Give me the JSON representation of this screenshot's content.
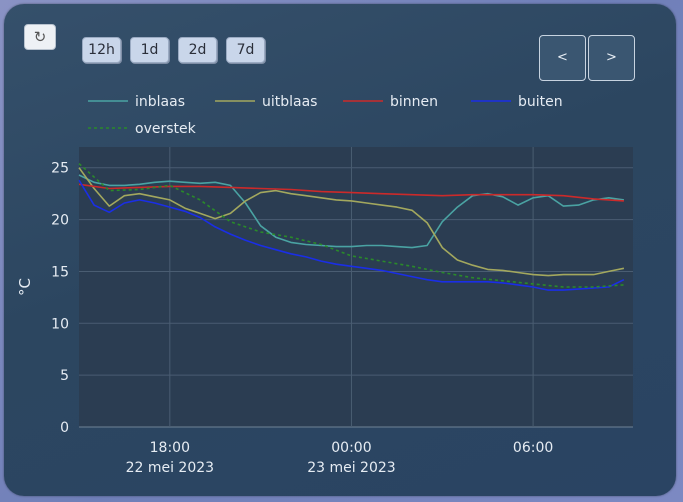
{
  "controls": {
    "refresh_icon": "↻",
    "ranges": [
      "12h",
      "1d",
      "2d",
      "7d"
    ],
    "prev": "<",
    "next": ">"
  },
  "chart_data": {
    "type": "line",
    "ylabel": "°C",
    "ylim": [
      0,
      27
    ],
    "yticks": [
      0,
      5,
      10,
      15,
      20,
      25
    ],
    "xlim": [
      15.0,
      33.3
    ],
    "xticks": [
      {
        "x": 18,
        "label": [
          "18:00",
          "22 mei 2023"
        ]
      },
      {
        "x": 24,
        "label": [
          "00:00",
          "23 mei 2023"
        ]
      },
      {
        "x": 30,
        "label": [
          "06:00",
          ""
        ]
      }
    ],
    "grid": true,
    "legend": "top-left",
    "series": [
      {
        "name": "inblaas",
        "color": "#4aa3a3",
        "dash": "",
        "x": [
          15.0,
          15.5,
          16.0,
          16.5,
          17.0,
          17.5,
          18.0,
          18.5,
          19.0,
          19.5,
          20.0,
          20.5,
          21.0,
          21.5,
          22.0,
          22.5,
          23.0,
          23.5,
          24.0,
          24.5,
          25.0,
          25.5,
          26.0,
          26.5,
          27.0,
          27.5,
          28.0,
          28.5,
          29.0,
          29.5,
          30.0,
          30.5,
          31.0,
          31.5,
          32.0,
          32.5,
          33.0
        ],
        "y": [
          24.3,
          23.6,
          23.3,
          23.3,
          23.4,
          23.6,
          23.7,
          23.6,
          23.5,
          23.6,
          23.3,
          21.6,
          19.4,
          18.3,
          17.8,
          17.6,
          17.5,
          17.4,
          17.4,
          17.5,
          17.5,
          17.4,
          17.3,
          17.5,
          19.8,
          21.2,
          22.3,
          22.5,
          22.2,
          21.4,
          22.1,
          22.3,
          21.3,
          21.4,
          21.9,
          22.1,
          21.9
        ]
      },
      {
        "name": "uitblaas",
        "color": "#a3a85e",
        "dash": "",
        "x": [
          15.0,
          15.5,
          16.0,
          16.5,
          17.0,
          17.5,
          18.0,
          18.5,
          19.0,
          19.5,
          20.0,
          20.5,
          21.0,
          21.5,
          22.0,
          22.5,
          23.0,
          23.5,
          24.0,
          24.5,
          25.0,
          25.5,
          26.0,
          26.5,
          27.0,
          27.5,
          28.0,
          28.5,
          29.0,
          29.5,
          30.0,
          30.5,
          31.0,
          31.5,
          32.0,
          32.5,
          33.0
        ],
        "y": [
          25.0,
          23.0,
          21.3,
          22.3,
          22.5,
          22.2,
          21.9,
          21.1,
          20.6,
          20.1,
          20.6,
          21.8,
          22.6,
          22.8,
          22.5,
          22.3,
          22.1,
          21.9,
          21.8,
          21.6,
          21.4,
          21.2,
          20.9,
          19.7,
          17.3,
          16.1,
          15.6,
          15.2,
          15.1,
          14.9,
          14.7,
          14.6,
          14.7,
          14.7,
          14.7,
          15.0,
          15.3
        ]
      },
      {
        "name": "binnen",
        "color": "#cc2a2a",
        "dash": "",
        "x": [
          15.0,
          16.0,
          17.0,
          18.0,
          19.0,
          20.0,
          21.0,
          22.0,
          23.0,
          24.0,
          25.0,
          26.0,
          27.0,
          28.0,
          29.0,
          30.0,
          31.0,
          32.0,
          33.0
        ],
        "y": [
          23.4,
          23.0,
          23.1,
          23.2,
          23.2,
          23.1,
          23.0,
          22.9,
          22.7,
          22.6,
          22.5,
          22.4,
          22.3,
          22.4,
          22.4,
          22.4,
          22.3,
          22.0,
          21.8
        ]
      },
      {
        "name": "buiten",
        "color": "#1a2ee6",
        "dash": "",
        "x": [
          15.0,
          15.5,
          16.0,
          16.5,
          17.0,
          17.5,
          18.0,
          18.5,
          19.0,
          19.5,
          20.0,
          20.5,
          21.0,
          21.5,
          22.0,
          22.5,
          23.0,
          23.5,
          24.0,
          24.5,
          25.0,
          25.5,
          26.0,
          26.5,
          27.0,
          27.5,
          28.0,
          28.5,
          29.0,
          29.5,
          30.0,
          30.5,
          31.0,
          31.5,
          32.0,
          32.5,
          33.0
        ],
        "y": [
          23.8,
          21.4,
          20.7,
          21.6,
          21.9,
          21.6,
          21.2,
          20.8,
          20.2,
          19.3,
          18.6,
          18.0,
          17.5,
          17.1,
          16.7,
          16.4,
          16.0,
          15.7,
          15.5,
          15.3,
          15.1,
          14.8,
          14.5,
          14.2,
          14.0,
          14.0,
          14.0,
          14.0,
          13.9,
          13.7,
          13.5,
          13.2,
          13.2,
          13.3,
          13.4,
          13.5,
          14.2
        ]
      },
      {
        "name": "overstek",
        "color": "#2a8a2a",
        "dash": "3,3",
        "x": [
          15.0,
          16.0,
          17.0,
          18.0,
          19.0,
          20.0,
          21.0,
          22.0,
          23.0,
          24.0,
          25.0,
          26.0,
          27.0,
          28.0,
          29.0,
          30.0,
          31.0,
          32.0,
          33.0
        ],
        "y": [
          25.4,
          22.8,
          22.9,
          23.3,
          21.9,
          19.8,
          18.8,
          18.3,
          17.6,
          16.5,
          16.0,
          15.5,
          14.9,
          14.4,
          14.1,
          13.8,
          13.5,
          13.5,
          13.7
        ]
      }
    ]
  }
}
